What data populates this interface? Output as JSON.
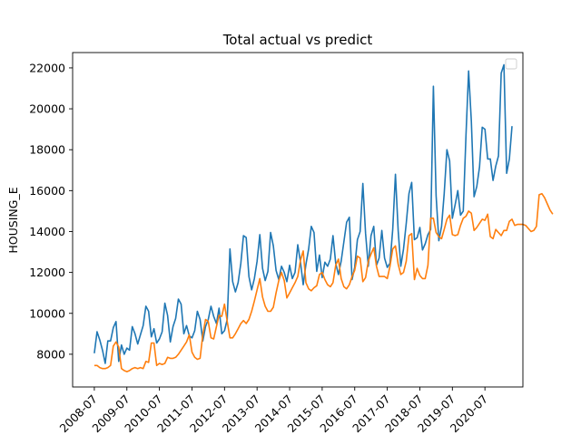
{
  "chart_data": {
    "type": "line",
    "title": "Total actual vs predict",
    "xlabel": "",
    "ylabel": "HOUSING_E",
    "x_start": "2008-07",
    "x_tick_labels": [
      "2008-07",
      "2009-07",
      "2010-07",
      "2011-07",
      "2012-07",
      "2013-07",
      "2014-07",
      "2015-07",
      "2016-07",
      "2017-07",
      "2018-07",
      "2019-07",
      "2020-07"
    ],
    "y_ticks": [
      8000,
      10000,
      12000,
      14000,
      16000,
      18000,
      20000,
      22000
    ],
    "y_tick_labels": [
      "8000",
      "10000",
      "12000",
      "14000",
      "16000",
      "18000",
      "20000",
      "22000"
    ],
    "ylim": [
      6400,
      22750
    ],
    "xlim_months": [
      -8,
      158
    ],
    "grid": false,
    "legend": "top-right (empty)",
    "series": [
      {
        "color": "#1f77b4",
        "values": [
          8050,
          9100,
          8700,
          8200,
          7550,
          8650,
          8650,
          9300,
          9600,
          7650,
          8450,
          8000,
          8300,
          8200,
          9350,
          9000,
          8500,
          8950,
          9400,
          10350,
          10100,
          8850,
          9250,
          8550,
          8750,
          9100,
          10500,
          9900,
          8600,
          9350,
          9750,
          10700,
          10450,
          9000,
          9400,
          8900,
          8800,
          9150,
          10100,
          9700,
          8650,
          9350,
          9700,
          10350,
          9850,
          9500,
          10250,
          9000,
          9150,
          9700,
          13150,
          11550,
          11050,
          11500,
          12450,
          13800,
          13700,
          11800,
          11150,
          11700,
          12550,
          13850,
          12200,
          11600,
          12050,
          13950,
          13300,
          12100,
          11650,
          12300,
          12000,
          11550,
          12350,
          11700,
          12000,
          13350,
          12500,
          11400,
          12400,
          13150,
          14250,
          13950,
          12050,
          12850,
          11750,
          12500,
          12300,
          12650,
          13800,
          12450,
          11900,
          12550,
          13500,
          14450,
          14700,
          11650,
          12250,
          13600,
          14000,
          16350,
          13900,
          12300,
          13800,
          14250,
          12350,
          12700,
          14050,
          12700,
          12250,
          12450,
          14100,
          16800,
          14050,
          12300,
          13150,
          14400,
          15850,
          16400,
          13600,
          13700,
          14200,
          13100,
          13400,
          13850,
          14100,
          21100,
          15750,
          13550,
          14250,
          15850,
          18000,
          17450,
          14650,
          15300,
          16000,
          14800,
          15000,
          18700,
          21850,
          19400,
          15700,
          16200,
          17150,
          19100,
          19000,
          17550,
          17550,
          16500,
          17200,
          17700,
          21750,
          22150,
          16850,
          17550,
          19150
        ],
        "name": ""
      },
      {
        "color": "#ff7f0e",
        "values": [
          7450,
          7450,
          7350,
          7300,
          7300,
          7350,
          7450,
          8400,
          8600,
          8350,
          7300,
          7200,
          7150,
          7200,
          7300,
          7350,
          7300,
          7350,
          7300,
          7650,
          7600,
          8550,
          8550,
          7450,
          7550,
          7500,
          7550,
          7850,
          7800,
          7800,
          7850,
          8000,
          8200,
          8400,
          8600,
          8950,
          8100,
          7850,
          7750,
          7800,
          8950,
          9700,
          9600,
          8800,
          8750,
          9350,
          9900,
          9850,
          10450,
          9600,
          8800,
          8800,
          9000,
          9250,
          9500,
          9650,
          9500,
          9700,
          10100,
          10600,
          11150,
          11700,
          10800,
          10350,
          10100,
          10100,
          10300,
          11000,
          11600,
          12000,
          11600,
          10750,
          11000,
          11250,
          11500,
          11800,
          12600,
          13050,
          11500,
          11200,
          11100,
          11250,
          11350,
          11900,
          12000,
          11650,
          11400,
          11300,
          11500,
          12350,
          12650,
          11700,
          11300,
          11200,
          11400,
          11800,
          12100,
          12800,
          12700,
          11550,
          11750,
          12550,
          12900,
          13200,
          12300,
          11800,
          11800,
          11800,
          11700,
          12300,
          13150,
          13300,
          12400,
          11900,
          12000,
          12550,
          13800,
          13900,
          11650,
          12200,
          11850,
          11700,
          11700,
          12350,
          14650,
          14650,
          13950,
          13750,
          13650,
          14100,
          14600,
          14800,
          13850,
          13800,
          13850,
          14300,
          14650,
          14750,
          15000,
          14900,
          14050,
          14200,
          14400,
          14600,
          14550,
          14850,
          13750,
          13650,
          14100,
          13950,
          13800,
          14050,
          14050,
          14500,
          14600,
          14300,
          14350,
          14350,
          14350,
          14300,
          14150,
          14000,
          14050,
          14250,
          15800,
          15850,
          15650,
          15350,
          15050,
          14850
        ],
        "name": ""
      }
    ]
  }
}
